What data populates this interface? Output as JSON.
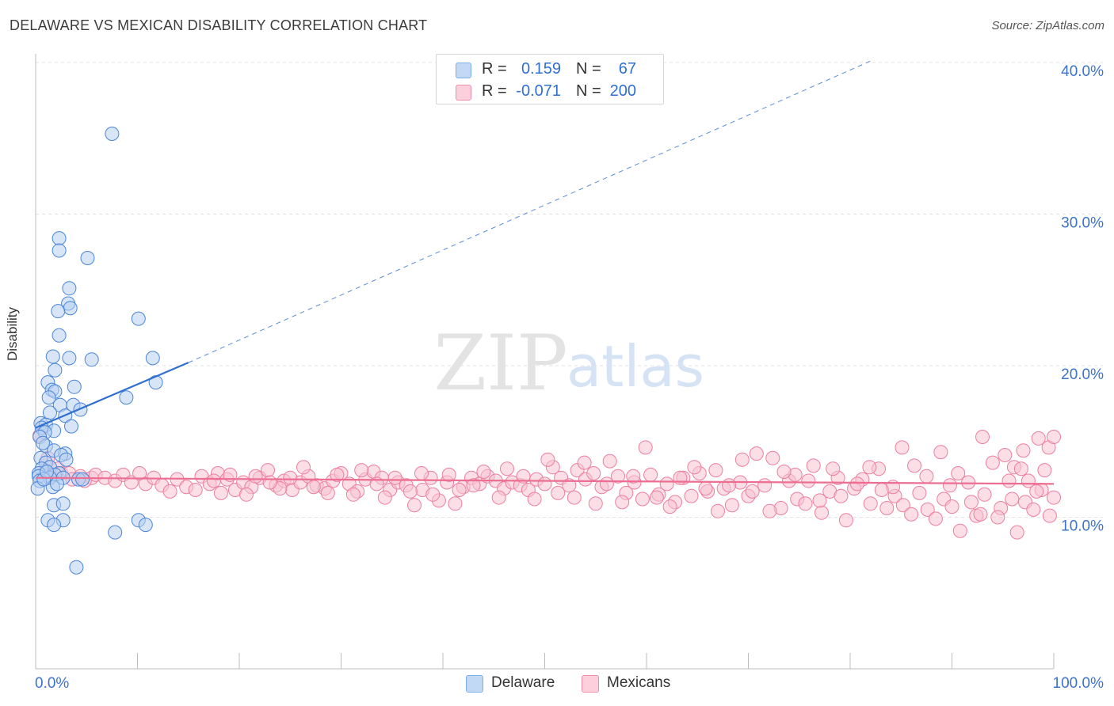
{
  "header": {
    "title": "DELAWARE VS MEXICAN DISABILITY CORRELATION CHART",
    "source": "Source: ZipAtlas.com"
  },
  "watermark": {
    "zip": "ZIP",
    "atlas": "atlas"
  },
  "legend": {
    "r_label": "R =",
    "n_label": "N =",
    "rows": [
      {
        "name": "Delaware",
        "r": "0.159",
        "n": "67",
        "color": "#7eaee8",
        "fill": "#c2d9f5"
      },
      {
        "name": "Mexicans",
        "r": "-0.071",
        "n": "200",
        "color": "#f08eaa",
        "fill": "#fbd0dc"
      }
    ]
  },
  "bottom_legend": {
    "delaware": "Delaware",
    "mexicans": "Mexicans"
  },
  "chart_data": {
    "type": "scatter",
    "title": "DELAWARE VS MEXICAN DISABILITY CORRELATION CHART",
    "ylabel": "Disability",
    "xlabel": "",
    "xlim": [
      0,
      100
    ],
    "ylim": [
      0,
      41.5
    ],
    "x_tick_labels": [
      "0.0%",
      "100.0%"
    ],
    "y_ticks": [
      10,
      20,
      30,
      40
    ],
    "y_tick_labels": [
      "10.0%",
      "20.0%",
      "30.0%",
      "40.0%"
    ],
    "grid": "horizontal dashed",
    "legend_placement": "top-center",
    "series": [
      {
        "name": "Delaware",
        "color": "#4a86d8",
        "trendline": {
          "x": [
            0,
            15
          ],
          "y": [
            15.9,
            20.2
          ],
          "extended_to": [
            82,
            40.1
          ]
        },
        "points": [
          [
            7.5,
            35.3
          ],
          [
            2.3,
            28.4
          ],
          [
            2.3,
            27.6
          ],
          [
            5.1,
            27.1
          ],
          [
            3.3,
            25.1
          ],
          [
            3.2,
            24.1
          ],
          [
            3.4,
            23.8
          ],
          [
            2.2,
            23.6
          ],
          [
            10.1,
            23.1
          ],
          [
            2.3,
            22.0
          ],
          [
            1.7,
            20.6
          ],
          [
            3.3,
            20.5
          ],
          [
            5.5,
            20.4
          ],
          [
            11.5,
            20.5
          ],
          [
            1.9,
            19.7
          ],
          [
            1.2,
            18.9
          ],
          [
            11.8,
            18.9
          ],
          [
            3.8,
            18.6
          ],
          [
            1.6,
            18.4
          ],
          [
            1.9,
            18.3
          ],
          [
            1.3,
            17.9
          ],
          [
            8.9,
            17.9
          ],
          [
            2.4,
            17.4
          ],
          [
            3.7,
            17.4
          ],
          [
            4.4,
            17.1
          ],
          [
            1.4,
            16.9
          ],
          [
            2.9,
            16.7
          ],
          [
            0.5,
            16.2
          ],
          [
            1.0,
            16.1
          ],
          [
            3.5,
            16.0
          ],
          [
            0.6,
            15.9
          ],
          [
            1.8,
            15.7
          ],
          [
            0.9,
            15.6
          ],
          [
            0.4,
            15.3
          ],
          [
            1.0,
            14.7
          ],
          [
            1.8,
            14.4
          ],
          [
            2.9,
            14.2
          ],
          [
            2.5,
            14.1
          ],
          [
            0.5,
            13.9
          ],
          [
            1.0,
            13.6
          ],
          [
            1.4,
            13.3
          ],
          [
            0.6,
            13.2
          ],
          [
            0.3,
            12.9
          ],
          [
            2.3,
            12.9
          ],
          [
            1.9,
            12.8
          ],
          [
            0.3,
            12.7
          ],
          [
            1.4,
            12.6
          ],
          [
            2.7,
            12.6
          ],
          [
            4.2,
            12.5
          ],
          [
            4.6,
            12.5
          ],
          [
            0.4,
            12.4
          ],
          [
            1.7,
            12.0
          ],
          [
            0.2,
            11.9
          ],
          [
            1.8,
            10.8
          ],
          [
            2.7,
            10.9
          ],
          [
            1.2,
            9.8
          ],
          [
            2.7,
            9.8
          ],
          [
            10.1,
            9.8
          ],
          [
            1.8,
            9.5
          ],
          [
            10.8,
            9.5
          ],
          [
            7.8,
            9.0
          ],
          [
            4.0,
            6.7
          ],
          [
            0.8,
            12.5
          ],
          [
            1.1,
            13.0
          ],
          [
            3.0,
            13.8
          ],
          [
            0.7,
            14.9
          ],
          [
            2.1,
            12.2
          ]
        ]
      },
      {
        "name": "Mexicans",
        "color": "#ec7f9f",
        "trendline": {
          "x": [
            0,
            100
          ],
          "y": [
            12.6,
            12.2
          ]
        },
        "points": [
          [
            0.4,
            15.4
          ],
          [
            1.2,
            13.9
          ],
          [
            2.2,
            13.2
          ],
          [
            0.9,
            13.0
          ],
          [
            2.5,
            12.9
          ],
          [
            3.3,
            12.9
          ],
          [
            1.5,
            12.7
          ],
          [
            4.4,
            12.7
          ],
          [
            5.5,
            12.6
          ],
          [
            3.6,
            12.5
          ],
          [
            4.8,
            12.4
          ],
          [
            5.9,
            12.8
          ],
          [
            6.8,
            12.6
          ],
          [
            7.8,
            12.4
          ],
          [
            8.6,
            12.8
          ],
          [
            9.4,
            12.3
          ],
          [
            10.2,
            12.9
          ],
          [
            10.8,
            12.2
          ],
          [
            11.6,
            12.6
          ],
          [
            12.4,
            12.1
          ],
          [
            13.2,
            11.7
          ],
          [
            13.9,
            12.5
          ],
          [
            14.8,
            12.0
          ],
          [
            15.7,
            11.8
          ],
          [
            16.3,
            12.7
          ],
          [
            17.1,
            12.2
          ],
          [
            17.9,
            12.9
          ],
          [
            18.8,
            12.5
          ],
          [
            19.6,
            11.8
          ],
          [
            20.4,
            12.3
          ],
          [
            21.2,
            12.0
          ],
          [
            22.0,
            12.6
          ],
          [
            22.8,
            13.1
          ],
          [
            23.6,
            12.1
          ],
          [
            24.4,
            12.4
          ],
          [
            25.2,
            11.8
          ],
          [
            26.0,
            12.3
          ],
          [
            26.8,
            12.7
          ],
          [
            27.6,
            12.1
          ],
          [
            28.4,
            11.9
          ],
          [
            29.2,
            12.4
          ],
          [
            30.0,
            12.9
          ],
          [
            30.8,
            12.2
          ],
          [
            31.6,
            11.7
          ],
          [
            32.4,
            12.5
          ],
          [
            33.2,
            13.0
          ],
          [
            34.0,
            12.6
          ],
          [
            34.8,
            11.8
          ],
          [
            35.6,
            12.3
          ],
          [
            36.4,
            12.1
          ],
          [
            37.2,
            10.8
          ],
          [
            38.0,
            11.8
          ],
          [
            38.8,
            12.6
          ],
          [
            39.6,
            11.1
          ],
          [
            40.4,
            12.3
          ],
          [
            41.2,
            10.9
          ],
          [
            42.0,
            12.0
          ],
          [
            42.8,
            12.6
          ],
          [
            43.6,
            12.2
          ],
          [
            44.4,
            12.7
          ],
          [
            45.2,
            12.4
          ],
          [
            46.0,
            11.9
          ],
          [
            46.8,
            12.3
          ],
          [
            47.6,
            12.1
          ],
          [
            48.4,
            11.8
          ],
          [
            49.2,
            12.5
          ],
          [
            50.0,
            12.2
          ],
          [
            50.8,
            13.3
          ],
          [
            51.6,
            12.6
          ],
          [
            52.4,
            12.1
          ],
          [
            53.2,
            13.1
          ],
          [
            54.0,
            12.5
          ],
          [
            54.8,
            12.9
          ],
          [
            55.6,
            12.0
          ],
          [
            56.4,
            13.7
          ],
          [
            57.2,
            12.7
          ],
          [
            58.0,
            11.6
          ],
          [
            58.8,
            12.3
          ],
          [
            59.6,
            11.2
          ],
          [
            60.4,
            12.8
          ],
          [
            61.2,
            11.5
          ],
          [
            62.0,
            12.2
          ],
          [
            62.8,
            11.0
          ],
          [
            63.6,
            12.6
          ],
          [
            64.4,
            11.4
          ],
          [
            65.2,
            12.9
          ],
          [
            66.0,
            11.7
          ],
          [
            66.8,
            13.1
          ],
          [
            67.6,
            11.9
          ],
          [
            68.4,
            10.8
          ],
          [
            69.2,
            12.3
          ],
          [
            70.0,
            11.4
          ],
          [
            70.8,
            14.2
          ],
          [
            71.6,
            12.1
          ],
          [
            72.4,
            13.9
          ],
          [
            73.2,
            10.6
          ],
          [
            74.0,
            12.4
          ],
          [
            74.8,
            11.2
          ],
          [
            75.6,
            10.9
          ],
          [
            76.4,
            13.4
          ],
          [
            77.2,
            10.3
          ],
          [
            78.0,
            11.7
          ],
          [
            78.8,
            12.6
          ],
          [
            79.6,
            9.8
          ],
          [
            80.4,
            11.9
          ],
          [
            81.2,
            12.5
          ],
          [
            82.0,
            10.9
          ],
          [
            82.8,
            13.2
          ],
          [
            83.6,
            10.6
          ],
          [
            84.4,
            11.4
          ],
          [
            85.2,
            10.8
          ],
          [
            86.0,
            10.2
          ],
          [
            86.8,
            11.6
          ],
          [
            87.6,
            10.5
          ],
          [
            88.4,
            9.9
          ],
          [
            89.2,
            11.2
          ],
          [
            90.0,
            10.7
          ],
          [
            90.8,
            9.1
          ],
          [
            91.6,
            12.3
          ],
          [
            92.4,
            10.1
          ],
          [
            93.2,
            11.5
          ],
          [
            94.0,
            13.6
          ],
          [
            94.8,
            10.6
          ],
          [
            95.6,
            12.4
          ],
          [
            96.4,
            9.0
          ],
          [
            97.2,
            11.0
          ],
          [
            98.0,
            10.5
          ],
          [
            98.8,
            11.8
          ],
          [
            99.6,
            10.1
          ],
          [
            100.0,
            11.3
          ],
          [
            93.0,
            15.3
          ],
          [
            95.2,
            14.1
          ],
          [
            96.1,
            13.3
          ],
          [
            97.5,
            12.4
          ],
          [
            98.3,
            11.7
          ],
          [
            99.1,
            13.1
          ],
          [
            97.0,
            14.4
          ],
          [
            98.5,
            15.2
          ],
          [
            99.5,
            14.6
          ],
          [
            100.0,
            15.3
          ],
          [
            96.8,
            13.2
          ],
          [
            95.9,
            11.2
          ],
          [
            94.5,
            10.0
          ],
          [
            92.8,
            10.2
          ],
          [
            91.9,
            11.0
          ],
          [
            90.6,
            12.9
          ],
          [
            89.8,
            12.1
          ],
          [
            88.9,
            14.3
          ],
          [
            87.5,
            12.7
          ],
          [
            86.3,
            13.4
          ],
          [
            85.1,
            14.6
          ],
          [
            84.2,
            12.0
          ],
          [
            83.1,
            11.8
          ],
          [
            81.9,
            13.3
          ],
          [
            80.7,
            12.2
          ],
          [
            79.1,
            11.4
          ],
          [
            78.3,
            13.2
          ],
          [
            77.0,
            11.1
          ],
          [
            75.9,
            12.4
          ],
          [
            74.6,
            12.8
          ],
          [
            73.5,
            13.0
          ],
          [
            72.1,
            10.4
          ],
          [
            70.4,
            11.7
          ],
          [
            69.4,
            13.8
          ],
          [
            68.1,
            12.1
          ],
          [
            67.0,
            10.4
          ],
          [
            65.8,
            11.9
          ],
          [
            64.7,
            13.3
          ],
          [
            63.3,
            12.6
          ],
          [
            62.3,
            10.7
          ],
          [
            61.0,
            11.3
          ],
          [
            59.9,
            14.6
          ],
          [
            58.7,
            12.7
          ],
          [
            57.6,
            11.0
          ],
          [
            56.1,
            12.2
          ],
          [
            55.0,
            10.9
          ],
          [
            53.9,
            13.6
          ],
          [
            52.9,
            11.3
          ],
          [
            51.3,
            11.6
          ],
          [
            50.3,
            13.8
          ],
          [
            49.0,
            11.2
          ],
          [
            47.9,
            12.7
          ],
          [
            46.3,
            13.2
          ],
          [
            45.5,
            11.3
          ],
          [
            44.0,
            13.0
          ],
          [
            43.0,
            12.1
          ],
          [
            41.6,
            11.8
          ],
          [
            40.6,
            12.8
          ],
          [
            39.0,
            11.5
          ],
          [
            37.9,
            12.9
          ],
          [
            36.8,
            11.7
          ],
          [
            35.3,
            12.6
          ],
          [
            34.3,
            11.3
          ],
          [
            33.5,
            12.2
          ],
          [
            32.0,
            13.1
          ],
          [
            31.2,
            11.5
          ],
          [
            29.6,
            12.8
          ],
          [
            28.7,
            11.6
          ],
          [
            27.3,
            12.0
          ],
          [
            26.3,
            13.3
          ],
          [
            25.0,
            12.6
          ],
          [
            24.0,
            11.9
          ],
          [
            23.0,
            12.3
          ],
          [
            21.6,
            12.7
          ],
          [
            20.7,
            11.5
          ],
          [
            19.1,
            12.8
          ],
          [
            18.2,
            11.6
          ],
          [
            17.5,
            12.4
          ]
        ]
      }
    ]
  }
}
